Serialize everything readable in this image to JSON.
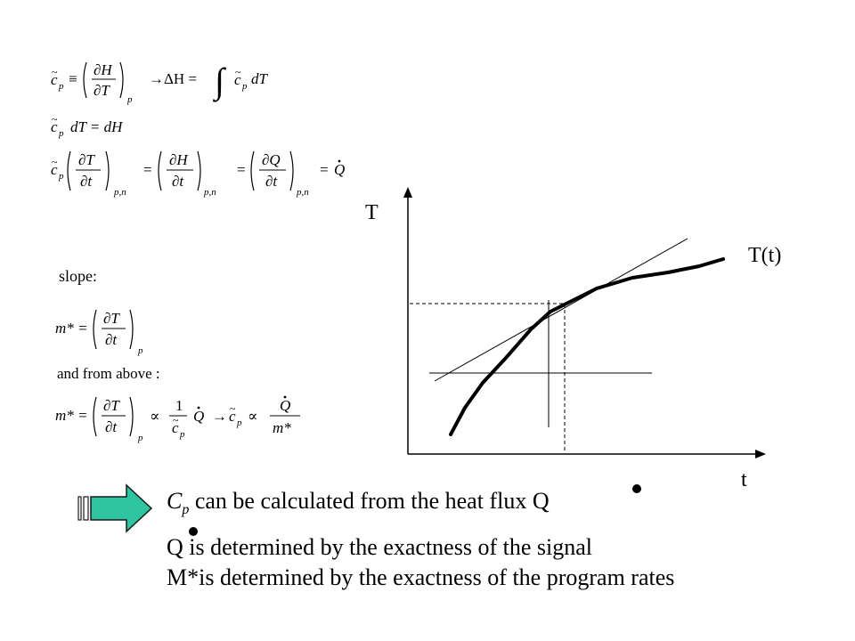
{
  "equations": {
    "eq1_cp": "c",
    "eq1_sub": "p",
    "eq1_def": "≡",
    "eq1_num": "∂H",
    "eq1_den": "∂T",
    "eq1_outer_sub": "p",
    "eq1_arrow": "→ΔH =",
    "eq1_int": "∫",
    "eq1_tail": "c",
    "eq1_tail_sub": "p",
    "eq1_tail2": "dT",
    "eq2_lhs": "c",
    "eq2_sub": "p",
    "eq2_rest": "dT = dH",
    "eq3_num1": "∂T",
    "eq3_den1": "∂t",
    "eq3_sub1": "p,n",
    "eq3_num2": "∂H",
    "eq3_den2": "∂t",
    "eq3_sub2": "p,n",
    "eq3_num3": "∂Q",
    "eq3_den3": "∂t",
    "eq3_sub3": "p,n",
    "eq3_q": "Q",
    "slope_label": "slope:",
    "eq4_lhs": "m* =",
    "eq4_num": "∂T",
    "eq4_den": "∂t",
    "eq4_sub": "p",
    "and_from_above": "and from above :",
    "eq5_lhs": "m* =",
    "eq5_num": "∂T",
    "eq5_den": "∂t",
    "eq5_sub": "p",
    "eq5_prop1": "∝",
    "eq5_frac_num": "1",
    "eq5_frac_den": "c",
    "eq5_frac_den_sub": "p",
    "eq5_q": "Q",
    "eq5_arrow": "→",
    "eq5_cp": "c",
    "eq5_cp_sub": "p",
    "eq5_prop2": "∝",
    "eq5_q2": "Q",
    "eq5_m": "m*"
  },
  "graph": {
    "y_axis_label": "T",
    "x_axis_label": "t",
    "curve_label": "T(t)"
  },
  "conclusions": {
    "line1_c": "C",
    "line1_sub": "p",
    "line1_text": " can be calculated from the heat flux Q",
    "line2_q": "Q",
    "line2_text": "  is determined by the exactness of the signal",
    "line3_text": "M*is determined by the exactness of the program rates"
  },
  "colors": {
    "arrow_fill": "#2ec4a0",
    "arrow_stroke": "#1a1a1a"
  },
  "icons": {
    "arrow": "right-arrow-icon"
  }
}
